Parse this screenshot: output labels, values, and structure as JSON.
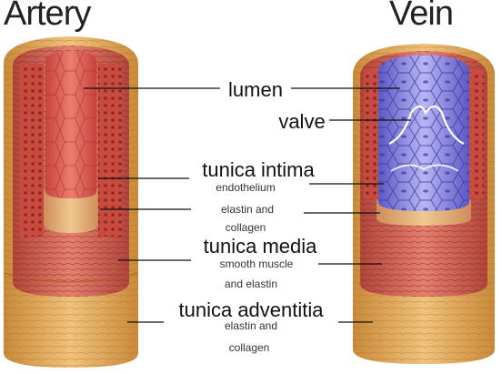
{
  "titles": {
    "artery": "Artery",
    "vein": "Vein"
  },
  "labels": {
    "lumen": "lumen",
    "valve": "valve",
    "tunica_intima": {
      "name": "tunica intima",
      "detail_1": "endothelium",
      "detail_2": "elastin and",
      "detail_3": "collagen"
    },
    "tunica_media": {
      "name": "tunica media",
      "detail_1": "smooth muscle",
      "detail_2": "and elastin"
    },
    "tunica_adventitia": {
      "name": "tunica adventitia",
      "detail_1": "elastin and",
      "detail_2": "collagen"
    }
  },
  "colors": {
    "adventitia": "#e8b870",
    "adventitia_dark": "#c9883e",
    "media": "#d9665a",
    "media_dark": "#a83a32",
    "intima": "#e79a8c",
    "lumen_red": "#e0655e",
    "vein_blue": "#8c86e0",
    "vein_blue_dark": "#4e4ab3",
    "line": "#111111"
  }
}
